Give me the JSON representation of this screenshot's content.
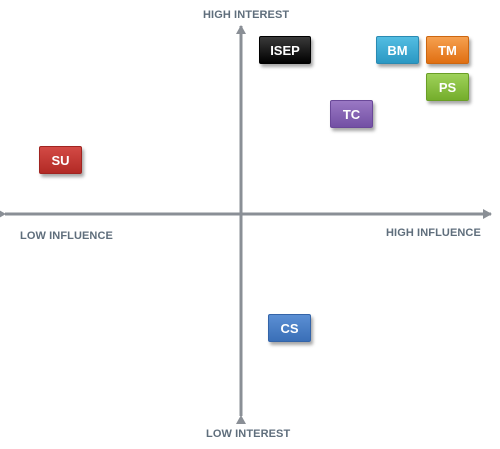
{
  "axes": {
    "top_label": "HIGH INTEREST",
    "bottom_label": "LOW INTEREST",
    "left_label": "LOW INFLUENCE",
    "right_label": "HIGH INFLUENCE",
    "axis_color": "#8a8f96"
  },
  "stakeholders": {
    "isep": {
      "label": "ISEP",
      "color": "#000000"
    },
    "bm": {
      "label": "BM",
      "color": "#3aaad6"
    },
    "tm": {
      "label": "TM",
      "color": "#ee8424"
    },
    "ps": {
      "label": "PS",
      "color": "#86bf3c"
    },
    "tc": {
      "label": "TC",
      "color": "#8160b3"
    },
    "su": {
      "label": "SU",
      "color": "#c13530"
    },
    "cs": {
      "label": "CS",
      "color": "#4a7fc6"
    }
  }
}
